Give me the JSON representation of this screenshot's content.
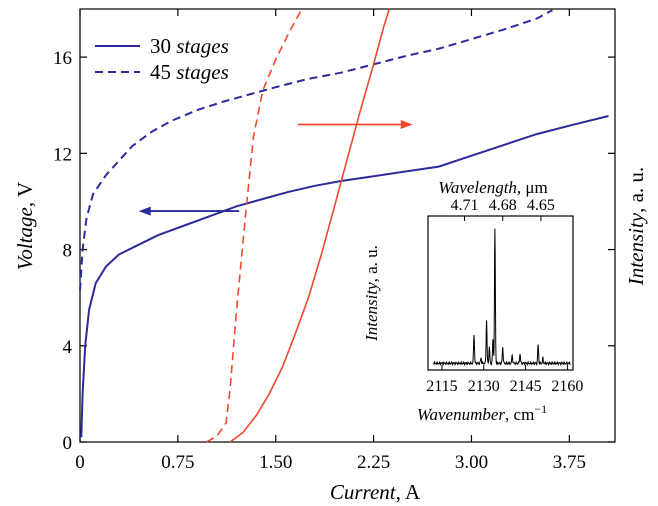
{
  "chart_data": [
    {
      "type": "line",
      "xlabel": {
        "italic": "Current",
        "rest": ", A"
      },
      "ylabel_left": {
        "italic": "Voltage",
        "rest": ", V"
      },
      "ylabel_right": {
        "italic": "Intensity",
        "rest": ", a. u."
      },
      "xlim": [
        0,
        4.1
      ],
      "ylim": [
        0,
        18
      ],
      "x_ticks": [
        "0",
        "0.75",
        "1.50",
        "2.25",
        "3.00",
        "3.75"
      ],
      "x_tick_values": [
        0,
        0.75,
        1.5,
        2.25,
        3.0,
        3.75
      ],
      "y_ticks": [
        "0",
        "4",
        "8",
        "12",
        "16"
      ],
      "y_tick_values": [
        0,
        4,
        8,
        12,
        16
      ],
      "legend": [
        {
          "number": "30",
          "word": "stages",
          "style": "solid",
          "color": "#2b2b9b"
        },
        {
          "number": "45",
          "word": "stages",
          "style": "dashed",
          "color": "#2b2b9b"
        }
      ],
      "series": [
        {
          "name": "30 stages",
          "axis": "voltage",
          "color": "#2b2b9b",
          "style": "solid",
          "points": [
            [
              0.01,
              0.2
            ],
            [
              0.02,
              2.0
            ],
            [
              0.04,
              4.0
            ],
            [
              0.07,
              5.5
            ],
            [
              0.12,
              6.6
            ],
            [
              0.2,
              7.3
            ],
            [
              0.3,
              7.8
            ],
            [
              0.45,
              8.2
            ],
            [
              0.6,
              8.6
            ],
            [
              0.8,
              9.0
            ],
            [
              1.0,
              9.4
            ],
            [
              1.2,
              9.8
            ],
            [
              1.4,
              10.1
            ],
            [
              1.6,
              10.4
            ],
            [
              1.8,
              10.65
            ],
            [
              2.0,
              10.85
            ],
            [
              2.25,
              11.05
            ],
            [
              2.5,
              11.25
            ],
            [
              2.75,
              11.45
            ],
            [
              3.0,
              11.9
            ],
            [
              3.25,
              12.35
            ],
            [
              3.5,
              12.8
            ],
            [
              3.75,
              13.15
            ],
            [
              4.05,
              13.55
            ]
          ]
        },
        {
          "name": "45 stages",
          "axis": "voltage",
          "color": "#2b2b9b",
          "style": "dashed",
          "points": [
            [
              0.0,
              6.3
            ],
            [
              0.02,
              8.0
            ],
            [
              0.05,
              9.3
            ],
            [
              0.1,
              10.3
            ],
            [
              0.2,
              11.1
            ],
            [
              0.3,
              11.7
            ],
            [
              0.4,
              12.3
            ],
            [
              0.55,
              12.9
            ],
            [
              0.7,
              13.35
            ],
            [
              0.9,
              13.8
            ],
            [
              1.1,
              14.15
            ],
            [
              1.3,
              14.45
            ],
            [
              1.5,
              14.75
            ],
            [
              1.75,
              15.1
            ],
            [
              2.0,
              15.35
            ],
            [
              2.25,
              15.7
            ],
            [
              2.5,
              16.05
            ],
            [
              2.75,
              16.35
            ],
            [
              3.0,
              16.75
            ],
            [
              3.25,
              17.15
            ],
            [
              3.5,
              17.6
            ],
            [
              3.62,
              17.95
            ]
          ]
        },
        {
          "name": "30 stages intensity",
          "axis": "intensity",
          "color": "#f24830",
          "style": "solid",
          "points": [
            [
              1.15,
              0.0
            ],
            [
              1.25,
              0.4
            ],
            [
              1.35,
              1.1
            ],
            [
              1.45,
              2.0
            ],
            [
              1.55,
              3.1
            ],
            [
              1.65,
              4.5
            ],
            [
              1.75,
              6.0
            ],
            [
              1.85,
              7.8
            ],
            [
              1.95,
              9.8
            ],
            [
              2.05,
              11.8
            ],
            [
              2.15,
              13.8
            ],
            [
              2.25,
              15.7
            ],
            [
              2.33,
              17.3
            ],
            [
              2.37,
              18.0
            ]
          ]
        },
        {
          "name": "45 stages intensity",
          "axis": "intensity",
          "color": "#f24830",
          "style": "dashed",
          "points": [
            [
              0.97,
              0.0
            ],
            [
              1.05,
              0.25
            ],
            [
              1.12,
              0.8
            ],
            [
              1.15,
              2.2
            ],
            [
              1.2,
              5.5
            ],
            [
              1.27,
              9.5
            ],
            [
              1.33,
              12.7
            ],
            [
              1.4,
              14.6
            ],
            [
              1.5,
              15.9
            ],
            [
              1.6,
              17.0
            ],
            [
              1.7,
              18.0
            ]
          ]
        }
      ],
      "arrows": [
        {
          "points_to": "voltage",
          "color": "#2b2b9b",
          "from": [
            1.22,
            9.6
          ],
          "to": [
            0.45,
            9.6
          ]
        },
        {
          "points_to": "intensity",
          "color": "#f24830",
          "from": [
            1.67,
            13.2
          ],
          "to": [
            2.55,
            13.2
          ]
        }
      ]
    },
    {
      "type": "line",
      "xlabel": {
        "italic": "Wavenumber",
        "rest": ", cm",
        "sup": "−1"
      },
      "ylabel": {
        "italic": "Intensity",
        "rest": ", a. u."
      },
      "top_label": {
        "italic": "Wavelength",
        "rest": ", μm"
      },
      "xlim": [
        2110,
        2162
      ],
      "ylim": [
        0,
        1.15
      ],
      "x_ticks": [
        "2115",
        "2130",
        "2145",
        "2160"
      ],
      "x_tick_values": [
        2115,
        2130,
        2145,
        2160
      ],
      "top_ticks": [
        "4.71",
        "4.68",
        "4.65"
      ],
      "top_tick_values": [
        2123.1,
        2136.8,
        2150.5
      ],
      "color": "#000000",
      "baseline": 0.05,
      "peaks": [
        [
          2126.5,
          0.22
        ],
        [
          2129.0,
          0.04
        ],
        [
          2131.0,
          0.32
        ],
        [
          2132.0,
          0.12
        ],
        [
          2133.3,
          0.18
        ],
        [
          2134.0,
          1.0
        ],
        [
          2136.8,
          0.12
        ],
        [
          2140.2,
          0.06
        ],
        [
          2143.0,
          0.07
        ],
        [
          2149.5,
          0.14
        ],
        [
          2151.2,
          0.04
        ]
      ]
    }
  ]
}
